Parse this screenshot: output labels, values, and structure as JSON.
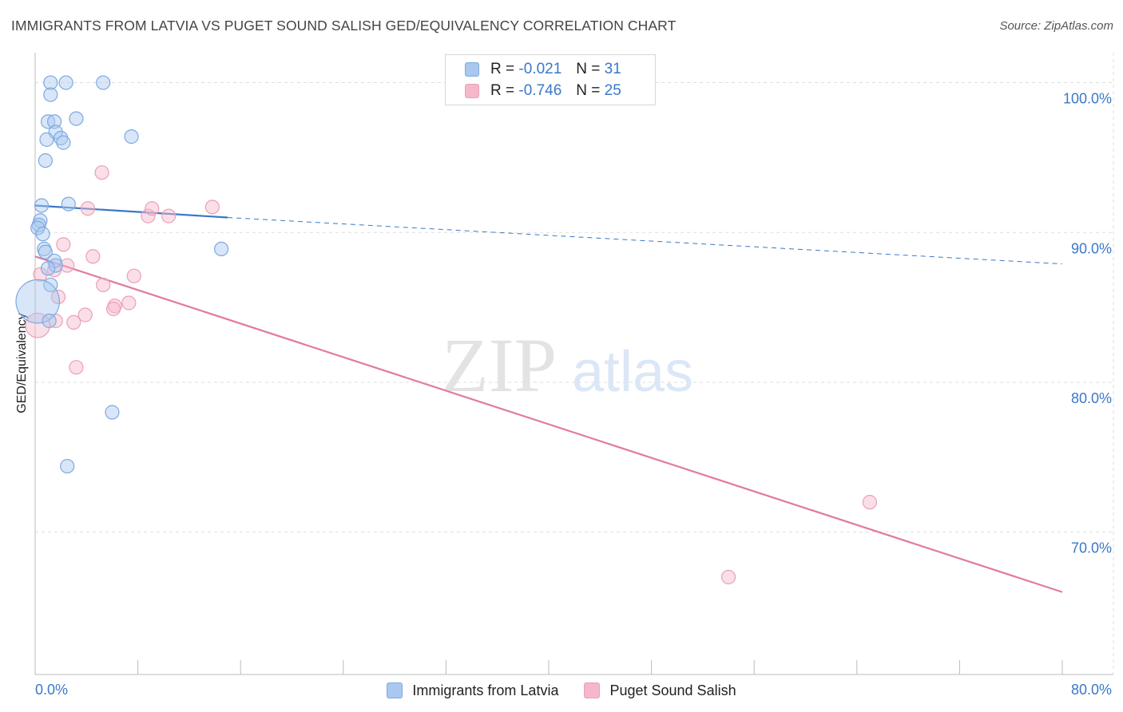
{
  "title": "IMMIGRANTS FROM LATVIA VS PUGET SOUND SALISH GED/EQUIVALENCY CORRELATION CHART",
  "source": "Source: ZipAtlas.com",
  "watermark": {
    "zip": "ZIP",
    "atlas": "atlas"
  },
  "colors": {
    "blue_fill": "#a9c8f0",
    "blue_stroke": "#7ea9e0",
    "blue_line": "#3a78c9",
    "pink_fill": "#f5b8cb",
    "pink_stroke": "#ec9fb6",
    "pink_line": "#e27a9e",
    "grid": "#dddddd",
    "axis_text": "#3a78c9"
  },
  "legend": {
    "r_label": "R =",
    "n_label": "N =",
    "rows": [
      {
        "r": "-0.021",
        "n": "31"
      },
      {
        "r": "-0.746",
        "n": "25"
      }
    ]
  },
  "chart_data": {
    "type": "scatter",
    "title": "IMMIGRANTS FROM LATVIA VS PUGET SOUND SALISH GED/EQUIVALENCY CORRELATION CHART",
    "xlabel": "",
    "ylabel": "GED/Equivalency",
    "xlim": [
      0,
      80
    ],
    "ylim": [
      60.5,
      102
    ],
    "x_tick_labels": [
      {
        "value": 0,
        "label": "0.0%"
      },
      {
        "value": 80,
        "label": "80.0%"
      }
    ],
    "x_minor_ticks": [
      0,
      8,
      16,
      24,
      32,
      40,
      48,
      56,
      64,
      72,
      80
    ],
    "y_ticks": [
      {
        "value": 100,
        "label": "100.0%"
      },
      {
        "value": 90,
        "label": "90.0%"
      },
      {
        "value": 80,
        "label": "80.0%"
      },
      {
        "value": 70,
        "label": "70.0%"
      }
    ],
    "grid": true,
    "series": [
      {
        "name": "Immigrants from Latvia",
        "color": "blue",
        "points": [
          [
            1.2,
            100
          ],
          [
            2.4,
            100
          ],
          [
            5.3,
            100
          ],
          [
            1.2,
            99.2
          ],
          [
            1.0,
            97.4
          ],
          [
            1.5,
            97.4
          ],
          [
            3.2,
            97.6
          ],
          [
            1.6,
            96.7
          ],
          [
            2.0,
            96.3
          ],
          [
            0.9,
            96.2
          ],
          [
            2.2,
            96.0
          ],
          [
            7.5,
            96.4
          ],
          [
            0.8,
            94.8
          ],
          [
            0.5,
            91.8
          ],
          [
            2.6,
            91.9
          ],
          [
            0.4,
            90.8
          ],
          [
            0.3,
            90.5
          ],
          [
            0.2,
            90.3
          ],
          [
            0.6,
            89.9
          ],
          [
            0.7,
            88.9
          ],
          [
            0.8,
            88.7
          ],
          [
            14.5,
            88.9
          ],
          [
            1.5,
            88.1
          ],
          [
            1.6,
            87.8
          ],
          [
            1.0,
            87.6
          ],
          [
            1.2,
            86.5
          ],
          [
            0.2,
            85.4
          ],
          [
            1.1,
            84.1
          ],
          [
            6.0,
            78.0
          ],
          [
            2.5,
            74.4
          ]
        ],
        "sizes": [
          1,
          1,
          1,
          1,
          1,
          1,
          1,
          1,
          1,
          1,
          1,
          1,
          1,
          1,
          1,
          1,
          1,
          1,
          1,
          1,
          1,
          1,
          1,
          1,
          1,
          1,
          3.2,
          1,
          1,
          1
        ],
        "trend_solid": {
          "x": [
            0,
            15
          ],
          "y": [
            91.8,
            91.0
          ]
        },
        "trend_dashed": {
          "x": [
            15,
            80
          ],
          "y": [
            91.0,
            87.9
          ]
        }
      },
      {
        "name": "Puget Sound Salish",
        "color": "pink",
        "points": [
          [
            5.2,
            94.0
          ],
          [
            4.1,
            91.6
          ],
          [
            8.8,
            91.1
          ],
          [
            9.1,
            91.6
          ],
          [
            10.4,
            91.1
          ],
          [
            13.8,
            91.7
          ],
          [
            2.2,
            89.2
          ],
          [
            4.5,
            88.4
          ],
          [
            2.5,
            87.8
          ],
          [
            1.5,
            87.5
          ],
          [
            0.4,
            87.2
          ],
          [
            7.7,
            87.1
          ],
          [
            5.3,
            86.5
          ],
          [
            1.8,
            85.7
          ],
          [
            6.2,
            85.1
          ],
          [
            6.1,
            84.9
          ],
          [
            7.3,
            85.3
          ],
          [
            3.9,
            84.5
          ],
          [
            1.6,
            84.1
          ],
          [
            3.0,
            84.0
          ],
          [
            0.2,
            83.8
          ],
          [
            3.2,
            81.0
          ],
          [
            65.0,
            72.0
          ],
          [
            54.0,
            67.0
          ]
        ],
        "sizes": [
          1,
          1,
          1,
          1,
          1,
          1,
          1,
          1,
          1,
          1,
          1,
          1,
          1,
          1,
          1,
          1,
          1,
          1,
          1,
          1,
          1.8,
          1,
          1,
          1
        ],
        "trend_solid": {
          "x": [
            0,
            80
          ],
          "y": [
            88.4,
            66.0
          ]
        }
      }
    ]
  }
}
